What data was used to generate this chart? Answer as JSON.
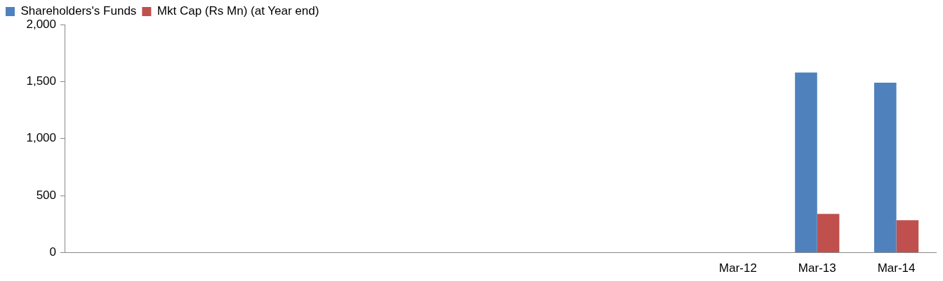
{
  "chart_data": {
    "type": "bar",
    "categories": [
      null,
      null,
      null,
      null,
      null,
      null,
      null,
      null,
      "Mar-12",
      "Mar-13",
      "Mar-14"
    ],
    "series": [
      {
        "name": "Shareholders's Funds",
        "color": "#4f81bd",
        "values": [
          null,
          null,
          null,
          null,
          null,
          null,
          null,
          null,
          null,
          1580,
          1490
        ]
      },
      {
        "name": "Mkt Cap (Rs Mn) (at Year end)",
        "color": "#c0504d",
        "values": [
          null,
          null,
          null,
          null,
          null,
          null,
          null,
          null,
          null,
          340,
          285
        ]
      }
    ],
    "ylim": [
      0,
      2000
    ],
    "yticks": [
      0,
      500,
      {
        "value": 1000,
        "label": "1,000"
      },
      {
        "value": 1500,
        "label": "1,500"
      },
      {
        "value": 2000,
        "label": "2,000"
      }
    ],
    "grid": false,
    "legend": "top left"
  }
}
